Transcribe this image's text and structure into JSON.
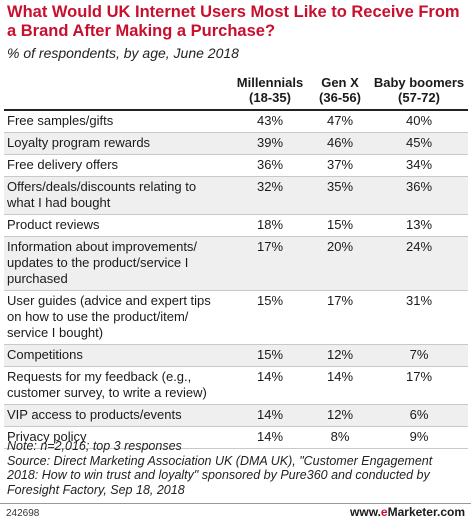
{
  "chart_data": {
    "type": "table",
    "title": "What Would UK Internet Users Most Like to Receive From a Brand After Making a Purchase?",
    "subtitle": "% of respondents, by age, June 2018",
    "columns": [
      {
        "name": "Millennials",
        "range": "(18-35)"
      },
      {
        "name": "Gen X",
        "range": "(36-56)"
      },
      {
        "name": "Baby boomers",
        "range": "(57-72)"
      }
    ],
    "rows": [
      {
        "label": "Free samples/gifts",
        "values": [
          "43%",
          "47%",
          "40%"
        ]
      },
      {
        "label": "Loyalty program rewards",
        "values": [
          "39%",
          "46%",
          "45%"
        ]
      },
      {
        "label": "Free delivery offers",
        "values": [
          "36%",
          "37%",
          "34%"
        ]
      },
      {
        "label": "Offers/deals/discounts relating to what I had bought",
        "values": [
          "32%",
          "35%",
          "36%"
        ]
      },
      {
        "label": "Product reviews",
        "values": [
          "18%",
          "15%",
          "13%"
        ]
      },
      {
        "label": "Information about improvements/ updates to the product/service I purchased",
        "values": [
          "17%",
          "20%",
          "24%"
        ]
      },
      {
        "label": "User guides (advice and expert tips on how to use the product/item/ service I bought)",
        "values": [
          "15%",
          "17%",
          "31%"
        ]
      },
      {
        "label": "Competitions",
        "values": [
          "15%",
          "12%",
          "7%"
        ]
      },
      {
        "label": "Requests for my feedback (e.g., customer survey, to write a review)",
        "values": [
          "14%",
          "14%",
          "17%"
        ]
      },
      {
        "label": "VIP access to products/events",
        "values": [
          "14%",
          "12%",
          "6%"
        ]
      },
      {
        "label": "Privacy policy",
        "values": [
          "14%",
          "8%",
          "9%"
        ]
      }
    ]
  },
  "note": "Note: n=2,016; top 3 responses",
  "source": "Source: Direct Marketing Association UK (DMA UK), \"Customer Engagement 2018: How to win trust and loyalty\" sponsored by Pure360 and conducted by Foresight Factory, Sep 18, 2018",
  "footer": {
    "figure_id": "242698",
    "brand_prefix": "www.",
    "brand_e": "e",
    "brand_name": "Marketer",
    "brand_suffix": ".com"
  },
  "colors": {
    "title": "#c8102e",
    "shade": "#efefef",
    "brand_accent": "#c8102e"
  }
}
